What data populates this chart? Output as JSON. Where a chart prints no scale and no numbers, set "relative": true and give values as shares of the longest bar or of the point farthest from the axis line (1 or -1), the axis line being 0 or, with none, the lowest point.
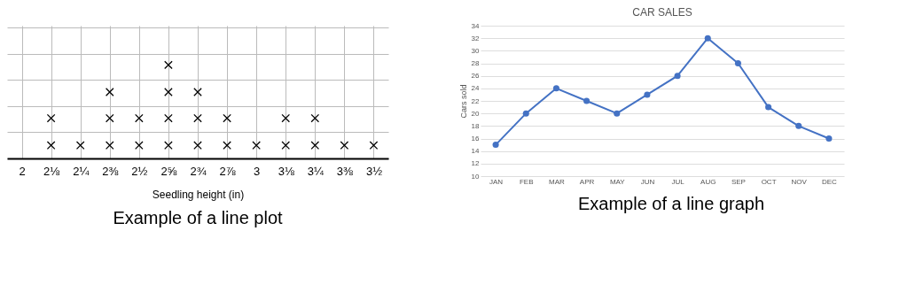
{
  "chart_data": [
    {
      "type": "scatter",
      "xlabel": "Seedling height (in)",
      "categories": [
        "2",
        "2⅛",
        "2¼",
        "2⅜",
        "2½",
        "2⅝",
        "2¾",
        "2⅞",
        "3",
        "3⅛",
        "3¼",
        "3⅜",
        "3½"
      ],
      "series": [
        {
          "color": "#000000",
          "x": [
            "2⅛",
            "2⅛",
            "2¼",
            "2⅜",
            "2⅜",
            "2⅜",
            "2½",
            "2½",
            "2⅝",
            "2⅝",
            "2⅝",
            "2⅝",
            "2¾",
            "2¾",
            "2¾",
            "2⅞",
            "2⅞",
            "3",
            "3⅛",
            "3⅛",
            "3¼",
            "3¼",
            "3⅜",
            "3½"
          ],
          "values": [
            0.14,
            0.43,
            0.14,
            0.14,
            0.43,
            0.71,
            0.14,
            0.43,
            0.14,
            0.43,
            0.71,
            1,
            0.14,
            0.43,
            0.71,
            0.14,
            0.43,
            0.14,
            0.14,
            0.43,
            0.14,
            0.43,
            0.14,
            0.14
          ]
        }
      ],
      "relative": true,
      "grid": true,
      "tick_labels": "x",
      "marker": "cross",
      "annotations": [
        "Example of a line plot"
      ]
    },
    {
      "type": "line",
      "title": "CAR SALES",
      "ylabel": "Cars sold",
      "categories": [
        "JAN",
        "FEB",
        "MAR",
        "APR",
        "MAY",
        "JUN",
        "JUL",
        "AUG",
        "SEP",
        "OCT",
        "NOV",
        "DEC"
      ],
      "series": [
        {
          "color": "#4472c4",
          "values": [
            15,
            20,
            24,
            22,
            20,
            23,
            26,
            32,
            28,
            21,
            18,
            16
          ]
        }
      ],
      "ylim": [
        10,
        34
      ],
      "yticks": [
        10,
        12,
        14,
        16,
        18,
        20,
        22,
        24,
        26,
        28,
        30,
        32,
        34
      ],
      "grid": "y",
      "marker": "circle",
      "line_style": "solid",
      "annotations": [
        "Example of a line graph"
      ]
    }
  ]
}
